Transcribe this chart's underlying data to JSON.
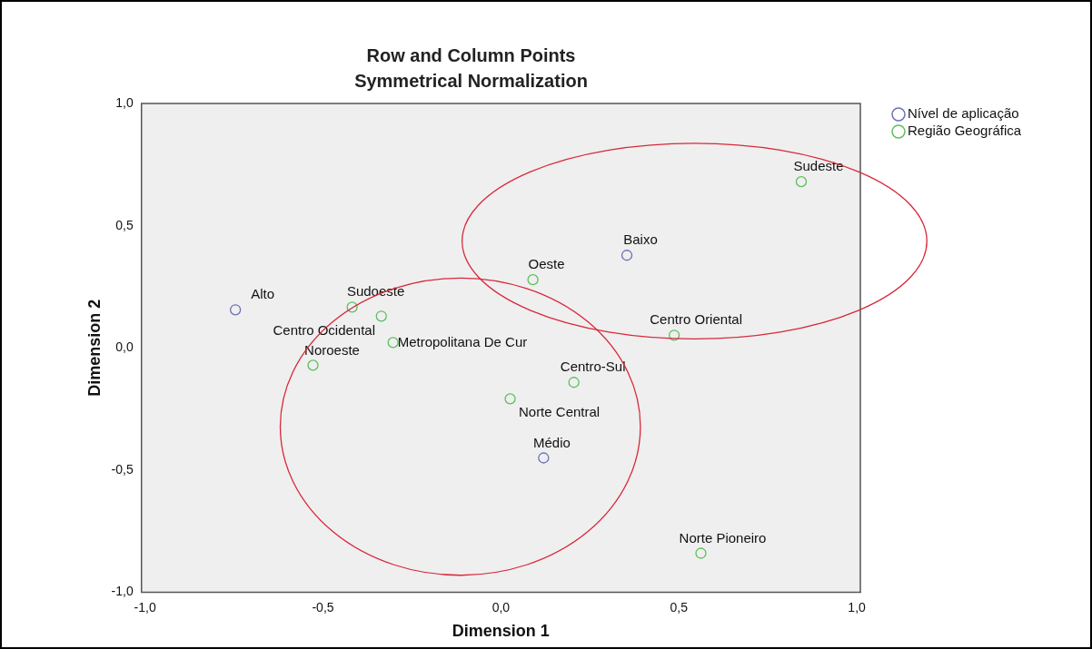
{
  "chart_data": {
    "type": "scatter",
    "title": "Row and Column Points",
    "subtitle": "Symmetrical Normalization",
    "xlabel": "Dimension 1",
    "ylabel": "Dimension 2",
    "xlim": [
      -1.01,
      1.01
    ],
    "ylim": [
      -1.0,
      1.0
    ],
    "xticks": [
      {
        "value": -1,
        "label": "-1,0"
      },
      {
        "value": -0.5,
        "label": "-0,5"
      },
      {
        "value": 0,
        "label": "0,0"
      },
      {
        "value": 0.5,
        "label": "0,5"
      },
      {
        "value": 1,
        "label": "1,0"
      }
    ],
    "yticks": [
      {
        "value": -1,
        "label": "-1,0"
      },
      {
        "value": -0.5,
        "label": "-0,5"
      },
      {
        "value": 0,
        "label": "0,0"
      },
      {
        "value": 0.5,
        "label": "0,5"
      },
      {
        "value": 1,
        "label": "1,0"
      }
    ],
    "grid": false,
    "legend": "top right",
    "marker": "circle",
    "series": [
      {
        "name": "Nível de aplicação",
        "color": "#6a70b8",
        "x": [
          -0.746,
          0.354,
          0.12
        ],
        "values": [
          0.156,
          0.379,
          -0.45
        ],
        "value_labels": [
          "Alto",
          "Baixo",
          "Médio"
        ]
      },
      {
        "name": "Região Geográfica",
        "color": "#5cbf5c",
        "x": [
          0.844,
          0.09,
          -0.418,
          -0.336,
          -0.303,
          -0.528,
          0.487,
          0.205,
          0.026,
          0.562
        ],
        "values": [
          0.68,
          0.279,
          0.167,
          0.13,
          0.022,
          -0.071,
          0.052,
          -0.141,
          -0.208,
          -0.84
        ],
        "value_labels": [
          "Sudeste",
          "Oeste",
          "Sudoeste",
          "Centro Ocidental",
          "Metropolitana De Cur",
          "Noroeste",
          "Centro Oriental",
          "Centro-Sul",
          "Norte Central",
          "Norte Pioneiro"
        ]
      }
    ]
  }
}
